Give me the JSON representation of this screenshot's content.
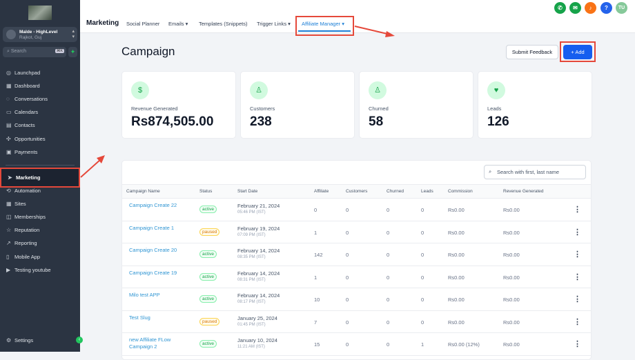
{
  "sidebar": {
    "account_name": "Malde - HighLevel",
    "account_location": "Rajkot, Guj",
    "search_placeholder": "Search",
    "search_shortcut": "⌘K",
    "items": [
      {
        "label": "Launchpad",
        "icon": "◎"
      },
      {
        "label": "Dashboard",
        "icon": "▦"
      },
      {
        "label": "Conversations",
        "icon": "◌"
      },
      {
        "label": "Calendars",
        "icon": "▭"
      },
      {
        "label": "Contacts",
        "icon": "▤"
      },
      {
        "label": "Opportunities",
        "icon": "✣"
      },
      {
        "label": "Payments",
        "icon": "▣"
      }
    ],
    "marketing": {
      "label": "Marketing",
      "icon": "➤"
    },
    "items2": [
      {
        "label": "Automation",
        "icon": "⟲"
      },
      {
        "label": "Sites",
        "icon": "▦"
      },
      {
        "label": "Memberships",
        "icon": "◫"
      },
      {
        "label": "Reputation",
        "icon": "☆"
      },
      {
        "label": "Reporting",
        "icon": "↗"
      },
      {
        "label": "Mobile App",
        "icon": "▯"
      },
      {
        "label": "Testing youtube",
        "icon": "▶"
      }
    ],
    "settings": {
      "label": "Settings",
      "icon": "⚙"
    }
  },
  "topbar": {
    "title": "Marketing",
    "tabs": [
      {
        "label": "Social Planner"
      },
      {
        "label": "Emails ▾"
      },
      {
        "label": "Templates (Snippets)"
      },
      {
        "label": "Trigger Links ▾"
      },
      {
        "label": "Affiliate Manager ▾"
      }
    ],
    "avatar": "TU"
  },
  "page": {
    "title": "Campaign",
    "feedback_label": "Submit Feedback",
    "add_label": "+ Add"
  },
  "stats": [
    {
      "label": "Revenue Generated",
      "value": "Rs874,505.00",
      "icon": "$"
    },
    {
      "label": "Customers",
      "value": "238",
      "icon": "♙"
    },
    {
      "label": "Churned",
      "value": "58",
      "icon": "♙"
    },
    {
      "label": "Leads",
      "value": "126",
      "icon": "♥"
    }
  ],
  "table": {
    "search_placeholder": "Search with first, last name",
    "headers": [
      "Campaign Name",
      "Status",
      "Start Date",
      "Affiliate",
      "Customers",
      "Churned",
      "Leads",
      "Commission",
      "Revenue Generated"
    ],
    "rows": [
      {
        "name": "Campaign Create 22",
        "status": "active",
        "date": "February 21, 2024",
        "time": "05:46 PM (IST)",
        "affiliate": "0",
        "customers": "0",
        "churned": "0",
        "leads": "0",
        "commission": "Rs0.00",
        "revenue": "Rs0.00"
      },
      {
        "name": "Campaign Create 1",
        "status": "paused",
        "date": "February 19, 2024",
        "time": "07:09 PM (IST)",
        "affiliate": "1",
        "customers": "0",
        "churned": "0",
        "leads": "0",
        "commission": "Rs0.00",
        "revenue": "Rs0.00"
      },
      {
        "name": "Campaign Create 20",
        "status": "active",
        "date": "February 14, 2024",
        "time": "08:35 PM (IST)",
        "affiliate": "142",
        "customers": "0",
        "churned": "0",
        "leads": "0",
        "commission": "Rs0.00",
        "revenue": "Rs0.00"
      },
      {
        "name": "Campaign Create 19",
        "status": "active",
        "date": "February 14, 2024",
        "time": "08:31 PM (IST)",
        "affiliate": "1",
        "customers": "0",
        "churned": "0",
        "leads": "0",
        "commission": "Rs0.00",
        "revenue": "Rs0.00"
      },
      {
        "name": "Milo test APP",
        "status": "active",
        "date": "February 14, 2024",
        "time": "08:17 PM (IST)",
        "affiliate": "10",
        "customers": "0",
        "churned": "0",
        "leads": "0",
        "commission": "Rs0.00",
        "revenue": "Rs0.00"
      },
      {
        "name": "Test Slug",
        "status": "paused",
        "date": "January 25, 2024",
        "time": "01:45 PM (IST)",
        "affiliate": "7",
        "customers": "0",
        "churned": "0",
        "leads": "0",
        "commission": "Rs0.00",
        "revenue": "Rs0.00"
      },
      {
        "name": "new Affiliate FLow Campaign 2",
        "status": "active",
        "date": "January 10, 2024",
        "time": "11:21 AM (IST)",
        "affiliate": "15",
        "customers": "0",
        "churned": "0",
        "leads": "1",
        "commission": "Rs0.00 (12%)",
        "revenue": "Rs0.00"
      }
    ]
  },
  "colors": {
    "accent": "#155eef",
    "annotation": "#e5483a",
    "sidebar": "#2b3442"
  }
}
